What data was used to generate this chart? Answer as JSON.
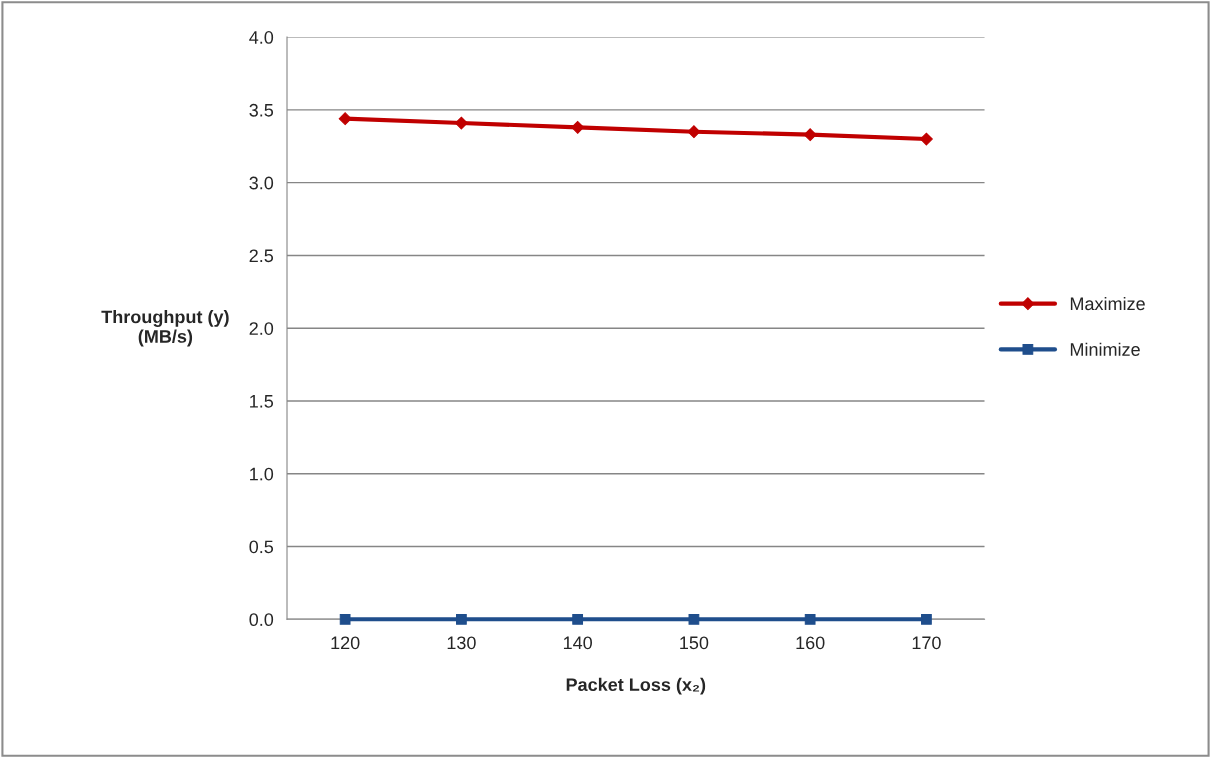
{
  "chart_data": {
    "type": "line",
    "xlabel": "Packet Loss (x₂)",
    "ylabel": "Throughput (y)\n(MB/s)",
    "categories": [
      "120",
      "130",
      "140",
      "150",
      "160",
      "170"
    ],
    "series": [
      {
        "name": "Maximize",
        "color": "#c00000",
        "marker": "diamond",
        "values": [
          3.44,
          3.41,
          3.38,
          3.35,
          3.33,
          3.3
        ]
      },
      {
        "name": "Minimize",
        "color": "#1f4e8c",
        "marker": "square",
        "values": [
          0.0,
          0.0,
          0.0,
          0.0,
          0.0,
          0.0
        ]
      }
    ],
    "ylim": [
      0,
      4
    ],
    "yticks": [
      {
        "value": 0,
        "label": "0.0"
      },
      {
        "value": 0.5,
        "label": "0.5"
      },
      {
        "value": 1,
        "label": "1.0"
      },
      {
        "value": 1.5,
        "label": "1.5"
      },
      {
        "value": 2,
        "label": "2.0"
      },
      {
        "value": 2.5,
        "label": "2.5"
      },
      {
        "value": 3,
        "label": "3.0"
      },
      {
        "value": 3.5,
        "label": "3.5"
      },
      {
        "value": 4,
        "label": "4.0"
      }
    ],
    "grid": "y",
    "legend": "right"
  }
}
